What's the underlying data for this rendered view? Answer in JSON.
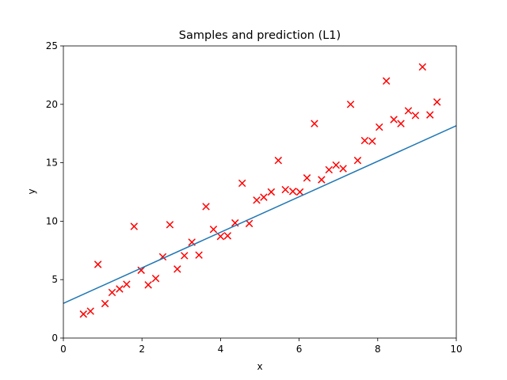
{
  "chart_data": {
    "type": "scatter",
    "title": "Samples and prediction (L1)",
    "xlabel": "x",
    "ylabel": "y",
    "xlim": [
      0,
      10
    ],
    "ylim": [
      0,
      25
    ],
    "xticks": [
      0,
      2,
      4,
      6,
      8,
      10
    ],
    "yticks": [
      0,
      5,
      10,
      15,
      20,
      25
    ],
    "xtick_labels": [
      "0",
      "2",
      "4",
      "6",
      "8",
      "10"
    ],
    "ytick_labels": [
      "0",
      "5",
      "10",
      "15",
      "20",
      "25"
    ],
    "grid": false,
    "legend": "none",
    "series": [
      {
        "kind": "scatter",
        "marker": "x",
        "color": "#ff0000",
        "points": [
          [
            0.51,
            2.05
          ],
          [
            0.69,
            2.3
          ],
          [
            0.88,
            6.3
          ],
          [
            1.06,
            2.95
          ],
          [
            1.24,
            3.9
          ],
          [
            1.43,
            4.2
          ],
          [
            1.61,
            4.6
          ],
          [
            1.8,
            9.55
          ],
          [
            1.98,
            5.8
          ],
          [
            2.16,
            4.55
          ],
          [
            2.35,
            5.1
          ],
          [
            2.53,
            6.95
          ],
          [
            2.71,
            9.7
          ],
          [
            2.9,
            5.9
          ],
          [
            3.08,
            7.05
          ],
          [
            3.27,
            8.2
          ],
          [
            3.45,
            7.1
          ],
          [
            3.63,
            11.25
          ],
          [
            3.82,
            9.3
          ],
          [
            4.0,
            8.7
          ],
          [
            4.18,
            8.75
          ],
          [
            4.37,
            9.85
          ],
          [
            4.55,
            13.25
          ],
          [
            4.73,
            9.8
          ],
          [
            4.92,
            11.8
          ],
          [
            5.1,
            12.05
          ],
          [
            5.29,
            12.5
          ],
          [
            5.47,
            15.2
          ],
          [
            5.65,
            12.7
          ],
          [
            5.84,
            12.55
          ],
          [
            6.02,
            12.5
          ],
          [
            6.2,
            13.7
          ],
          [
            6.39,
            18.35
          ],
          [
            6.57,
            13.55
          ],
          [
            6.76,
            14.4
          ],
          [
            6.94,
            14.8
          ],
          [
            7.12,
            14.5
          ],
          [
            7.31,
            20.0
          ],
          [
            7.49,
            15.2
          ],
          [
            7.67,
            16.9
          ],
          [
            7.86,
            16.85
          ],
          [
            8.04,
            18.05
          ],
          [
            8.22,
            22.0
          ],
          [
            8.41,
            18.7
          ],
          [
            8.59,
            18.35
          ],
          [
            8.78,
            19.45
          ],
          [
            8.96,
            19.05
          ],
          [
            9.14,
            23.2
          ],
          [
            9.33,
            19.1
          ],
          [
            9.51,
            20.2
          ]
        ]
      },
      {
        "kind": "line",
        "color": "#1f77b4",
        "x": [
          0,
          10
        ],
        "y": [
          2.97,
          18.17
        ]
      }
    ]
  }
}
